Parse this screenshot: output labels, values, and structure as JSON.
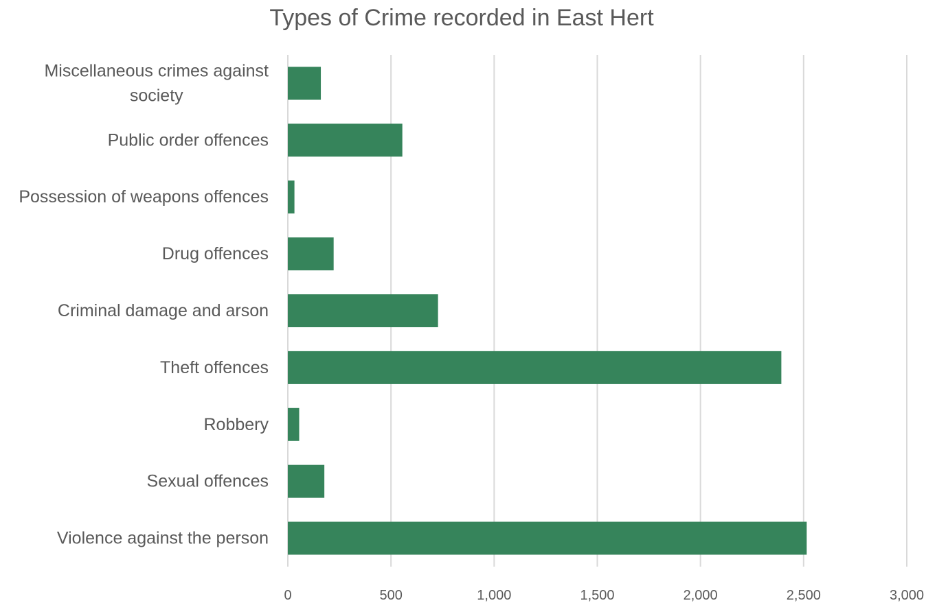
{
  "chart_data": {
    "type": "bar",
    "orientation": "horizontal",
    "title": "Types of Crime recorded in East Hert",
    "xlabel": "",
    "ylabel": "",
    "categories": [
      "Miscellaneous crimes against society",
      "Public order offences",
      "Possession of weapons offences",
      "Drug offences",
      "Criminal damage and arson",
      "Theft offences",
      "Robbery",
      "Sexual offences",
      "Violence against the person"
    ],
    "category_lines": [
      [
        "Miscellaneous crimes against",
        "society"
      ],
      [
        "Public order offences"
      ],
      [
        "Possession of weapons offences"
      ],
      [
        "Drug offences"
      ],
      [
        "Criminal damage and arson"
      ],
      [
        "Theft offences"
      ],
      [
        "Robbery"
      ],
      [
        "Sexual offences"
      ],
      [
        "Violence against the person"
      ]
    ],
    "values": [
      160,
      555,
      32,
      222,
      728,
      2392,
      55,
      177,
      2515
    ],
    "xlim": [
      0,
      3000
    ],
    "xticks": [
      0,
      500,
      1000,
      1500,
      2000,
      2500,
      3000
    ],
    "xtick_labels": [
      "0",
      "500",
      "1,000",
      "1,500",
      "2,000",
      "2,500",
      "3,000"
    ],
    "grid": "vertical",
    "legend": "none",
    "bar_color": "#36845B",
    "gridline_color": "#d9d9d9",
    "text_color": "#595959"
  }
}
